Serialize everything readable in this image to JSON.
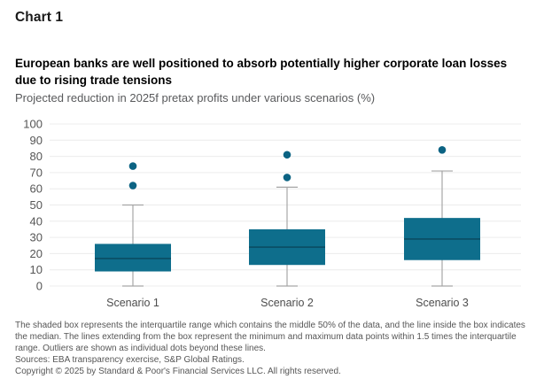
{
  "header": {
    "chart_label": "Chart 1",
    "title": "European banks are well positioned to absorb potentially higher corporate loan losses due to rising trade tensions",
    "subtitle": "Projected reduction in 2025f pretax profits under various scenarios (%)"
  },
  "chart_data": {
    "type": "boxplot",
    "title": "European banks are well positioned to absorb potentially higher corporate loan losses due to rising trade tensions",
    "subtitle": "Projected reduction in 2025f pretax profits under various scenarios (%)",
    "categories": [
      "Scenario 1",
      "Scenario 2",
      "Scenario 3"
    ],
    "series": [
      {
        "name": "Scenario 1",
        "whisker_low": 0,
        "q1": 9,
        "median": 17,
        "q3": 26,
        "whisker_high": 50,
        "outliers": [
          62,
          74
        ]
      },
      {
        "name": "Scenario 2",
        "whisker_low": 0,
        "q1": 13,
        "median": 24,
        "q3": 35,
        "whisker_high": 61,
        "outliers": [
          67,
          81
        ]
      },
      {
        "name": "Scenario 3",
        "whisker_low": 0,
        "q1": 16,
        "median": 29,
        "q3": 42,
        "whisker_high": 71,
        "outliers": [
          84
        ]
      }
    ],
    "y_ticks": [
      0,
      10,
      20,
      30,
      40,
      50,
      60,
      70,
      80,
      90,
      100
    ],
    "ylim": [
      0,
      100
    ],
    "xlabel": "",
    "ylabel": "",
    "grid": true,
    "legend": false,
    "colors": {
      "box_fill": "#0e6e8c",
      "median_line": "#0a4d63",
      "whisker": "#a6a6a6",
      "gridline": "#ececec",
      "outlier": "#0c6383",
      "tick_text": "#555555",
      "category_text": "#4d4d4d"
    }
  },
  "footer": {
    "note": "The shaded box represents the interquartile range which contains the middle 50% of the data, and the line inside the box indicates the median. The lines extending from the box represent the minimum and maximum data points within 1.5 times the interquartile range. Outliers are shown as individual dots beyond these lines.",
    "sources": "Sources: EBA transparency exercise, S&P Global Ratings.",
    "copyright": "Copyright © 2025 by Standard & Poor's Financial Services LLC. All rights reserved."
  }
}
